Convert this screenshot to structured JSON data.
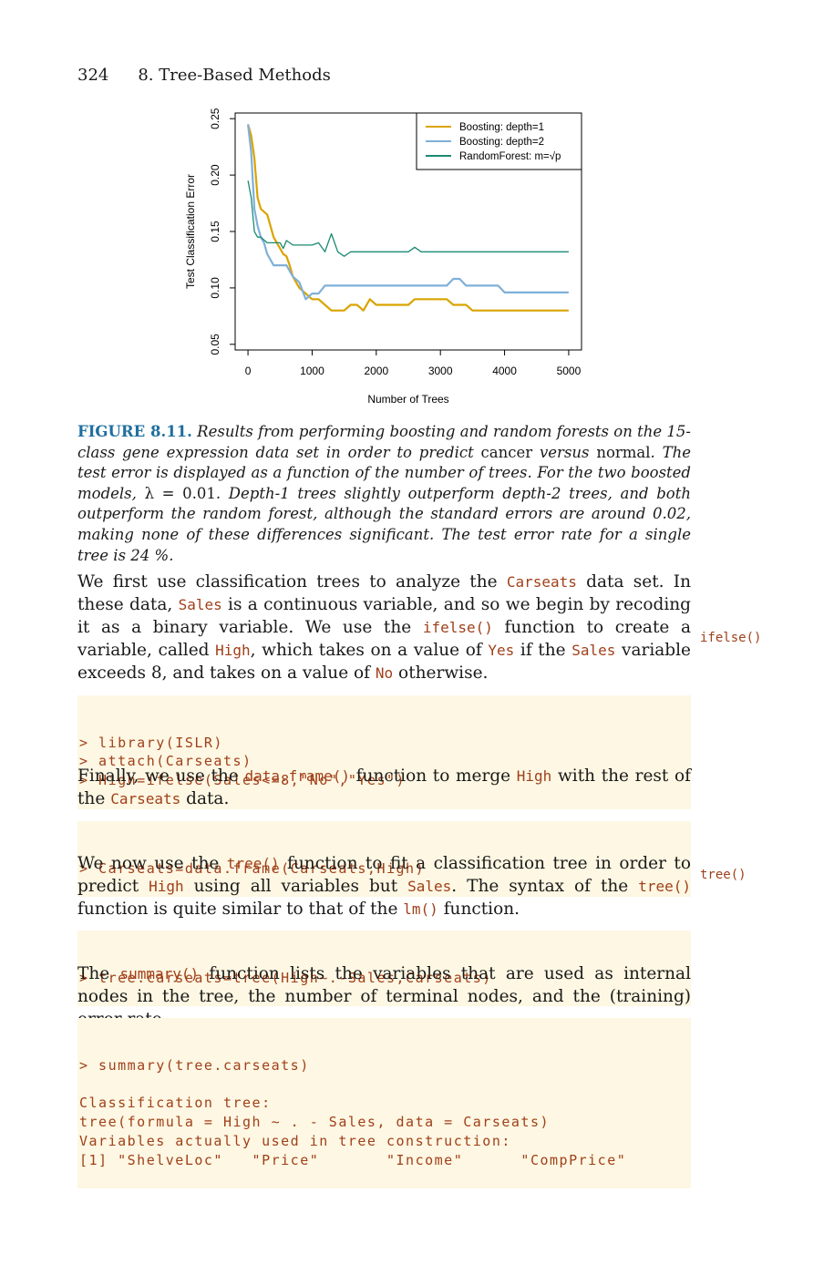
{
  "header": {
    "page_number": "324",
    "chapter": "8.   Tree-Based Methods"
  },
  "chart_data": {
    "type": "line",
    "xlabel": "Number of Trees",
    "ylabel": "Test Classification Error",
    "xlim": [
      -200,
      5200
    ],
    "ylim": [
      0.045,
      0.255
    ],
    "xticks": [
      "0",
      "1000",
      "2000",
      "3000",
      "4000",
      "5000"
    ],
    "yticks": [
      "0.05",
      "0.10",
      "0.15",
      "0.20",
      "0.25"
    ],
    "legend_position": "top-right",
    "legend": [
      "Boosting: depth=1",
      "Boosting: depth=2",
      "RandomForest: m=√p"
    ],
    "series": [
      {
        "name": "Boosting: depth=1",
        "color": "#d9a400",
        "x": [
          0,
          50,
          100,
          150,
          200,
          300,
          350,
          400,
          450,
          500,
          550,
          600,
          650,
          700,
          800,
          900,
          1000,
          1100,
          1200,
          1300,
          1400,
          1500,
          1600,
          1700,
          1800,
          1900,
          2000,
          2100,
          2200,
          2300,
          2400,
          2500,
          2600,
          2700,
          2800,
          2900,
          3000,
          3100,
          3200,
          3300,
          3400,
          3500,
          3600,
          4000,
          4500,
          5000
        ],
        "y": [
          0.245,
          0.235,
          0.215,
          0.18,
          0.17,
          0.165,
          0.155,
          0.145,
          0.14,
          0.135,
          0.13,
          0.128,
          0.12,
          0.11,
          0.1,
          0.095,
          0.09,
          0.09,
          0.085,
          0.08,
          0.08,
          0.08,
          0.085,
          0.085,
          0.08,
          0.09,
          0.085,
          0.085,
          0.085,
          0.085,
          0.085,
          0.085,
          0.09,
          0.09,
          0.09,
          0.09,
          0.09,
          0.09,
          0.085,
          0.085,
          0.085,
          0.08,
          0.08,
          0.08,
          0.08,
          0.08
        ]
      },
      {
        "name": "Boosting: depth=2",
        "color": "#7fb0d8",
        "x": [
          0,
          50,
          100,
          150,
          200,
          250,
          300,
          400,
          500,
          600,
          700,
          800,
          900,
          1000,
          1100,
          1200,
          1500,
          2000,
          2500,
          3000,
          3100,
          3200,
          3300,
          3400,
          3500,
          3900,
          4000,
          4500,
          5000
        ],
        "y": [
          0.245,
          0.22,
          0.17,
          0.155,
          0.145,
          0.14,
          0.13,
          0.12,
          0.12,
          0.12,
          0.11,
          0.105,
          0.09,
          0.095,
          0.095,
          0.102,
          0.102,
          0.102,
          0.102,
          0.102,
          0.102,
          0.108,
          0.108,
          0.102,
          0.102,
          0.102,
          0.096,
          0.096,
          0.096
        ]
      },
      {
        "name": "RandomForest: m=√p",
        "color": "#1a8a72",
        "x": [
          0,
          50,
          100,
          150,
          200,
          300,
          400,
          500,
          550,
          600,
          700,
          800,
          900,
          1000,
          1100,
          1200,
          1250,
          1300,
          1350,
          1400,
          1500,
          1600,
          1700,
          2000,
          2500,
          2600,
          2700,
          3000,
          3500,
          4000,
          4500,
          5000
        ],
        "y": [
          0.195,
          0.18,
          0.15,
          0.145,
          0.145,
          0.14,
          0.14,
          0.14,
          0.135,
          0.142,
          0.138,
          0.138,
          0.138,
          0.138,
          0.14,
          0.132,
          0.14,
          0.148,
          0.14,
          0.132,
          0.128,
          0.132,
          0.132,
          0.132,
          0.132,
          0.136,
          0.132,
          0.132,
          0.132,
          0.132,
          0.132,
          0.132
        ]
      }
    ]
  },
  "caption": {
    "label": "FIGURE 8.11.",
    "t1": " Results from performing boosting and random forests on the 15-class gene expression data set in order to predict ",
    "u1": "cancer",
    "t2": " versus ",
    "u2": "normal",
    "t3": ". The test error is displayed as a function of the number of trees. For the two boosted models, ",
    "u3": "λ = 0.01",
    "t4": ". Depth-1 trees slightly outperform depth-2 trees, and both outperform the random forest, although the standard errors are around 0.02, making none of these differences significant. The test error rate for a single tree is 24 %."
  },
  "p1": {
    "a": "We first use classification trees to analyze the ",
    "c1": "Carseats",
    "b": " data set. In these data, ",
    "c2": "Sales",
    "c": " is a continuous variable, and so we begin by recoding it as a binary variable. We use the ",
    "c3": "ifelse()",
    "d": " function to create a variable, called ",
    "c4": "High",
    "e": ", which takes on a value of ",
    "c5": "Yes",
    "f": " if the ",
    "c6": "Sales",
    "g": " variable exceeds 8, and takes on a value of ",
    "c7": "No",
    "h": " otherwise."
  },
  "margin1": "ifelse()",
  "code1": [
    "> library(ISLR)",
    "> attach(Carseats)",
    "> High=ifelse(Sales<=8,\"No\",\"Yes\")"
  ],
  "p2": {
    "a": "Finally, we use the ",
    "c1": "data.frame()",
    "b": " function to merge ",
    "c2": "High",
    "c": " with the rest of the ",
    "c3": "Carseats",
    "d": " data."
  },
  "code2": [
    "> Carseats=data.frame(Carseats,High)"
  ],
  "p3": {
    "a": "We now use the ",
    "c1": "tree()",
    "b": " function to fit a classification tree in order to predict ",
    "c2": "High",
    "c": " using all variables but ",
    "c3": "Sales",
    "d": ". The syntax of the ",
    "c4": "tree()",
    "e": " function is quite similar to that of the ",
    "c5": "lm()",
    "f": " function."
  },
  "margin2": "tree()",
  "code3": [
    "> tree.carseats=tree(High∼.-Sales,Carseats)"
  ],
  "p4": {
    "a": "The ",
    "c1": "summary()",
    "b": " function lists the variables that are used as internal nodes in the tree, the number of terminal nodes, and the (training) error rate."
  },
  "code4": [
    "> summary(tree.carseats)",
    "",
    "Classification tree:",
    "tree(formula = High ∼ . - Sales, data = Carseats)",
    "Variables actually used in tree construction:",
    "[1] \"ShelveLoc\"   \"Price\"       \"Income\"      \"CompPrice\""
  ]
}
